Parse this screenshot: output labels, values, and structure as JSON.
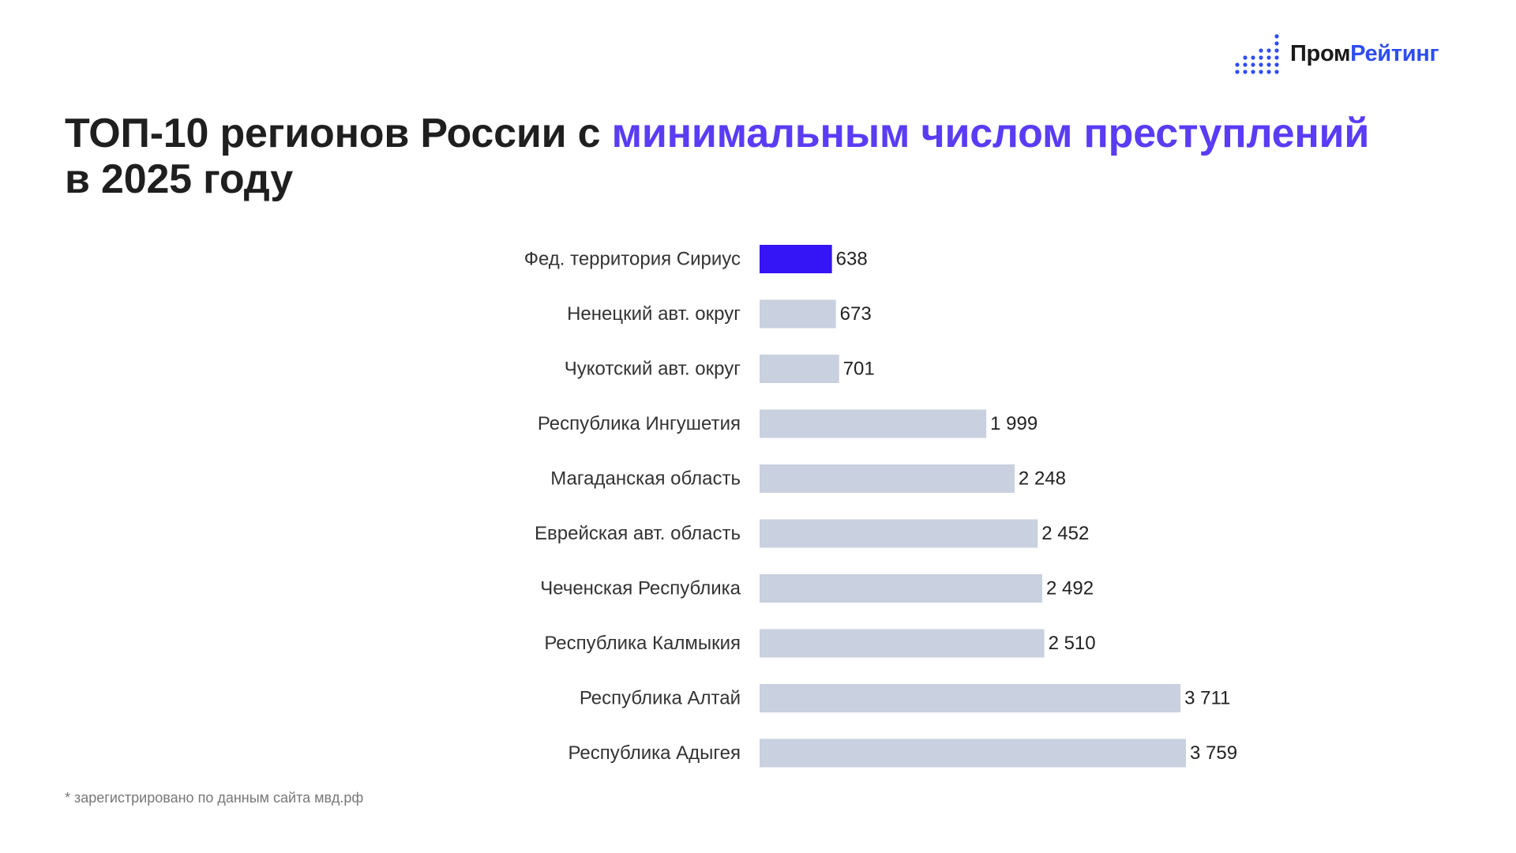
{
  "logo": {
    "name_part1": "Пром",
    "name_part2": "Рейтинг",
    "icon": "dot-grid-bars-icon"
  },
  "title": {
    "part1": "ТОП-10 регионов России с ",
    "highlight": "минимальным числом преступлений",
    "part2": " в 2025 году"
  },
  "footnote": "* зарегистрировано по данным сайта мвд.рф",
  "colors": {
    "highlight_bar": "#3514f5",
    "default_bar": "#c9d0df",
    "title_accent": "#5a3cf5",
    "logo_accent": "#2e4df2",
    "text": "#333333"
  },
  "chart_data": {
    "type": "bar",
    "orientation": "horizontal",
    "categories": [
      "Фед. территория Сириус",
      "Ненецкий авт. округ",
      "Чукотский авт. округ",
      "Республика Ингушетия",
      "Магаданская область",
      "Еврейская авт. область",
      "Чеченская Республика",
      "Республика Калмыкия",
      "Республика Алтай",
      "Республика Адыгея"
    ],
    "values": [
      638,
      673,
      701,
      1999,
      2248,
      2452,
      2492,
      2510,
      3711,
      3759
    ],
    "value_labels": [
      "638",
      "673",
      "701",
      "1 999",
      "2 248",
      "2 452",
      "2 492",
      "2 510",
      "3 711",
      "3 759"
    ],
    "highlight_index": 0,
    "xlim": [
      0,
      3759
    ],
    "grid": false,
    "axis_visible": false,
    "legend": "none"
  }
}
